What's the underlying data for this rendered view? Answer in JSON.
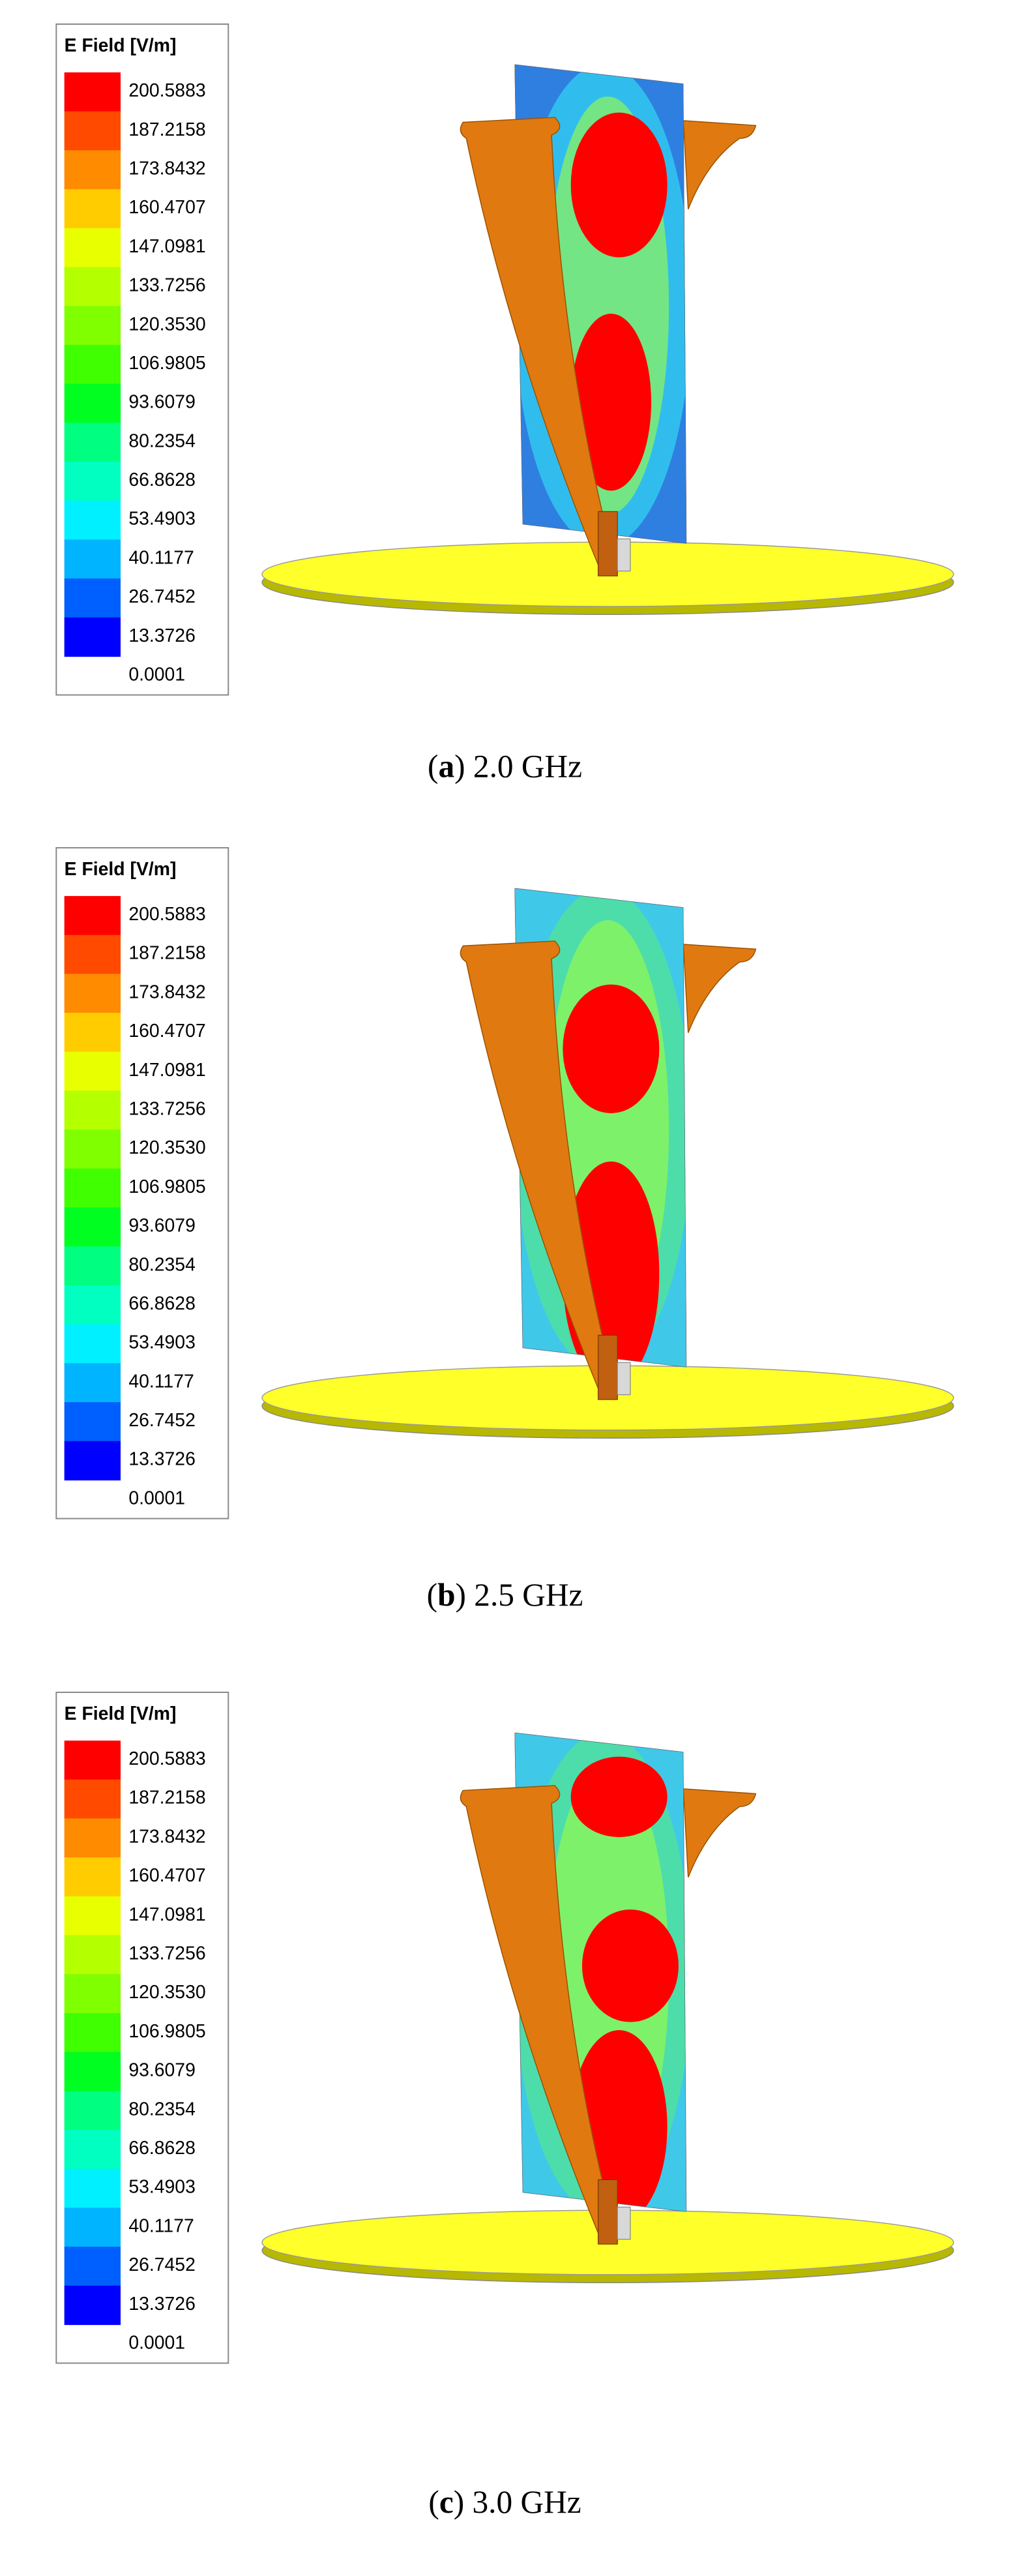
{
  "panels": [
    {
      "legend": {
        "title": "E Field [V/m]",
        "labels": [
          "200.5883",
          "187.2158",
          "173.8432",
          "160.4707",
          "147.0981",
          "133.7256",
          "120.3530",
          "106.9805",
          "93.6079",
          "80.2354",
          "66.8628",
          "53.4903",
          "40.1177",
          "26.7452",
          "13.3726",
          "0.0001"
        ]
      },
      "caption": [
        "(",
        "a",
        ") 2.0 GHz"
      ]
    },
    {
      "legend": {
        "title": "E Field [V/m]",
        "labels": [
          "200.5883",
          "187.2158",
          "173.8432",
          "160.4707",
          "147.0981",
          "133.7256",
          "120.3530",
          "106.9805",
          "93.6079",
          "80.2354",
          "66.8628",
          "53.4903",
          "40.1177",
          "26.7452",
          "13.3726",
          "0.0001"
        ]
      },
      "caption": [
        "(",
        "b",
        ") 2.5 GHz"
      ]
    },
    {
      "legend": {
        "title": "E Field [V/m]",
        "labels": [
          "200.5883",
          "187.2158",
          "173.8432",
          "160.4707",
          "147.0981",
          "133.7256",
          "120.3530",
          "106.9805",
          "93.6079",
          "80.2354",
          "66.8628",
          "53.4903",
          "40.1177",
          "26.7452",
          "13.3726",
          "0.0001"
        ]
      },
      "caption": [
        "(",
        "c",
        ") 3.0 GHz"
      ]
    }
  ],
  "colors": [
    "#ff0000",
    "#ff4a00",
    "#ff8c00",
    "#ffcc00",
    "#e8ff00",
    "#b4ff00",
    "#80ff00",
    "#40ff00",
    "#00ff20",
    "#00ff80",
    "#00ffc0",
    "#00f0ff",
    "#00b4ff",
    "#0060ff",
    "#0000ff"
  ]
}
